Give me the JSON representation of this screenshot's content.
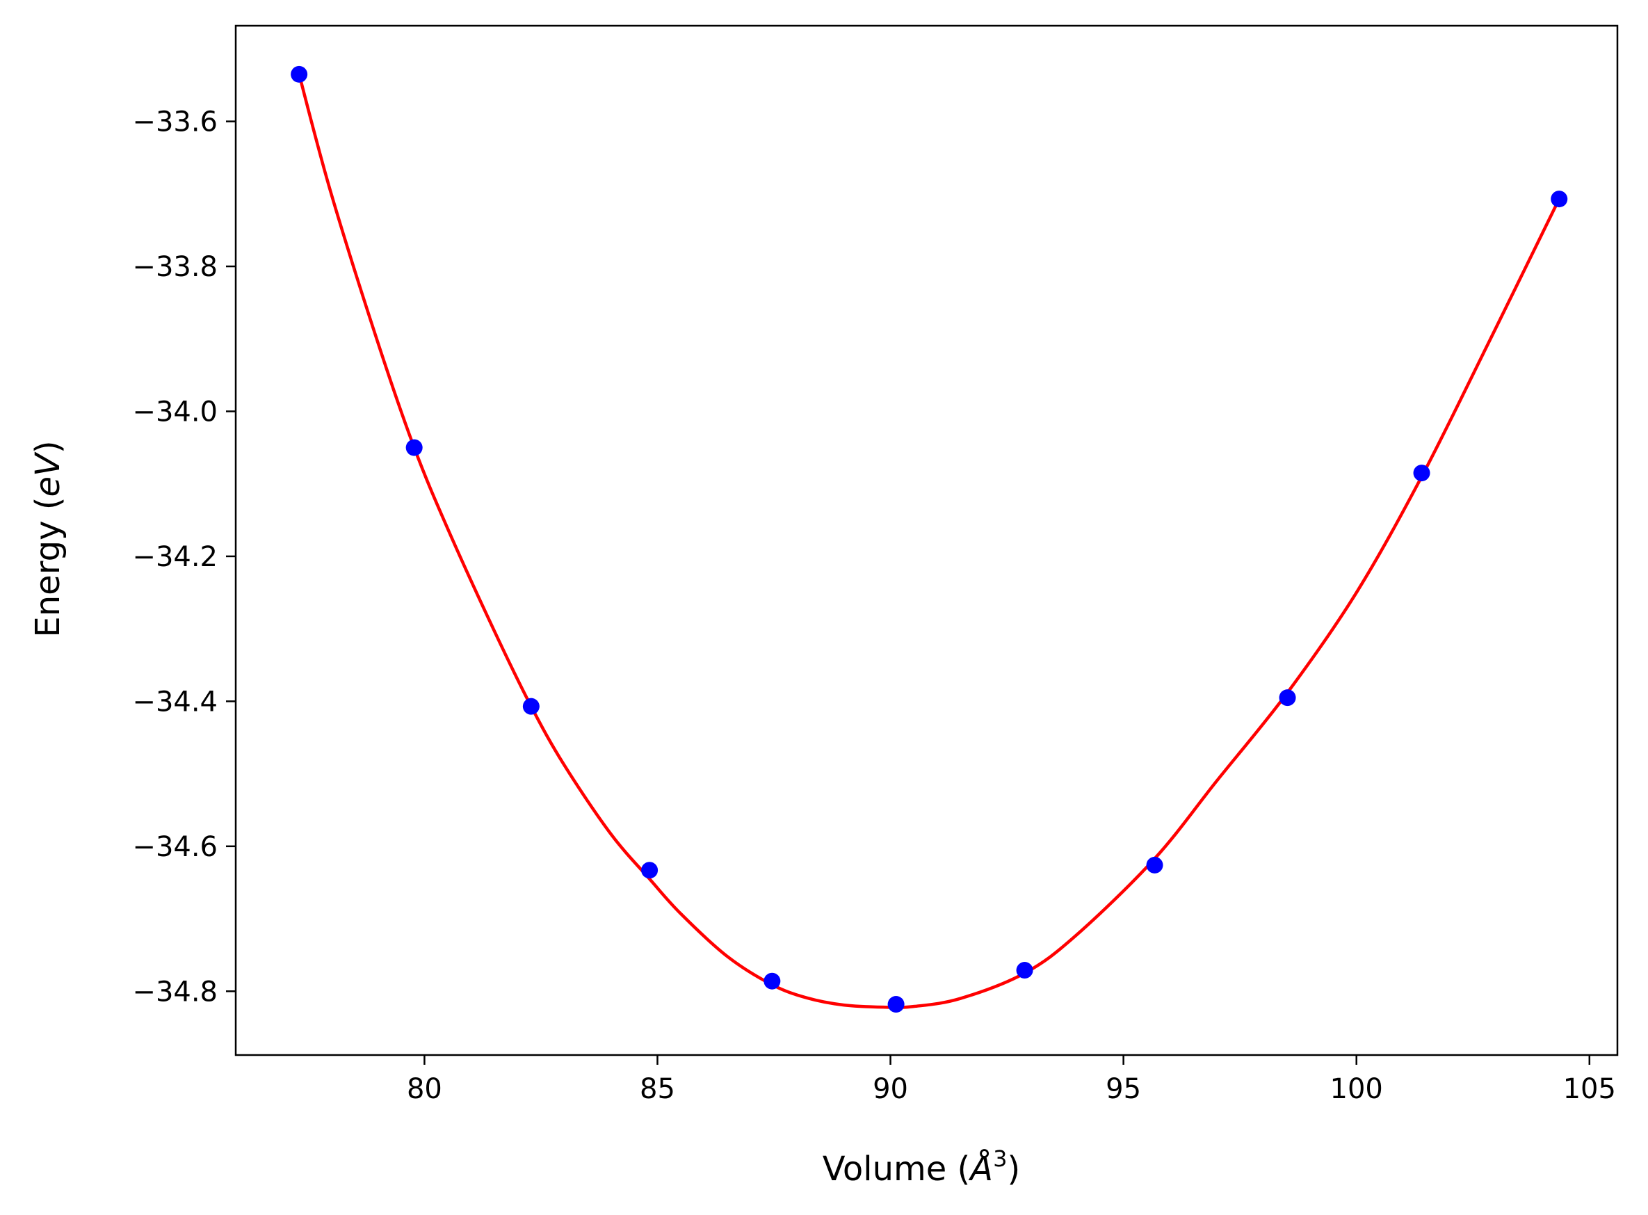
{
  "chart_data": {
    "type": "line",
    "title": "",
    "xlabel": "Volume (Å³)",
    "ylabel": "Energy (eV)",
    "xlabel_parts": {
      "prefix": "Volume (",
      "symbol": "Å",
      "sup": "3",
      "suffix": ")"
    },
    "ylabel_parts": {
      "prefix": "Energy (",
      "unit": "eV",
      "suffix": ")"
    },
    "xlim": [
      75.95,
      105.6
    ],
    "ylim": [
      -34.888,
      -33.468
    ],
    "xticks": [
      80,
      85,
      90,
      95,
      100,
      105
    ],
    "xtick_labels": [
      "80",
      "85",
      "90",
      "95",
      "100",
      "105"
    ],
    "yticks": [
      -33.6,
      -33.8,
      -34.0,
      -34.2,
      -34.4,
      -34.6,
      -34.8
    ],
    "ytick_labels": [
      "−33.6",
      "−33.8",
      "−34.0",
      "−34.2",
      "−34.4",
      "−34.6",
      "−34.8"
    ],
    "grid": false,
    "legend": "none",
    "series": [
      {
        "kind": "scatter",
        "color": "#0000ff",
        "x": [
          77.31,
          79.78,
          82.29,
          84.83,
          87.46,
          90.12,
          92.88,
          95.67,
          98.52,
          101.4,
          104.35
        ],
        "y": [
          -33.535,
          -34.05,
          -34.407,
          -34.633,
          -34.786,
          -34.818,
          -34.771,
          -34.626,
          -34.395,
          -34.085,
          -33.707
        ]
      },
      {
        "kind": "line",
        "color": "#ff0000",
        "x": [
          77.31,
          78.0,
          79.0,
          79.78,
          80.5,
          81.5,
          82.29,
          83.0,
          84.0,
          84.83,
          85.5,
          86.5,
          87.46,
          88.2,
          89.0,
          89.9,
          90.5,
          91.5,
          92.88,
          94.0,
          95.67,
          97.0,
          98.52,
          100.0,
          101.4,
          102.8,
          104.35
        ],
        "y": [
          -33.535,
          -33.7,
          -33.905,
          -34.05,
          -34.162,
          -34.303,
          -34.407,
          -34.488,
          -34.583,
          -34.645,
          -34.693,
          -34.752,
          -34.791,
          -34.809,
          -34.819,
          -34.822,
          -34.821,
          -34.81,
          -34.775,
          -34.722,
          -34.617,
          -34.51,
          -34.388,
          -34.25,
          -34.09,
          -33.91,
          -33.707
        ]
      }
    ]
  }
}
